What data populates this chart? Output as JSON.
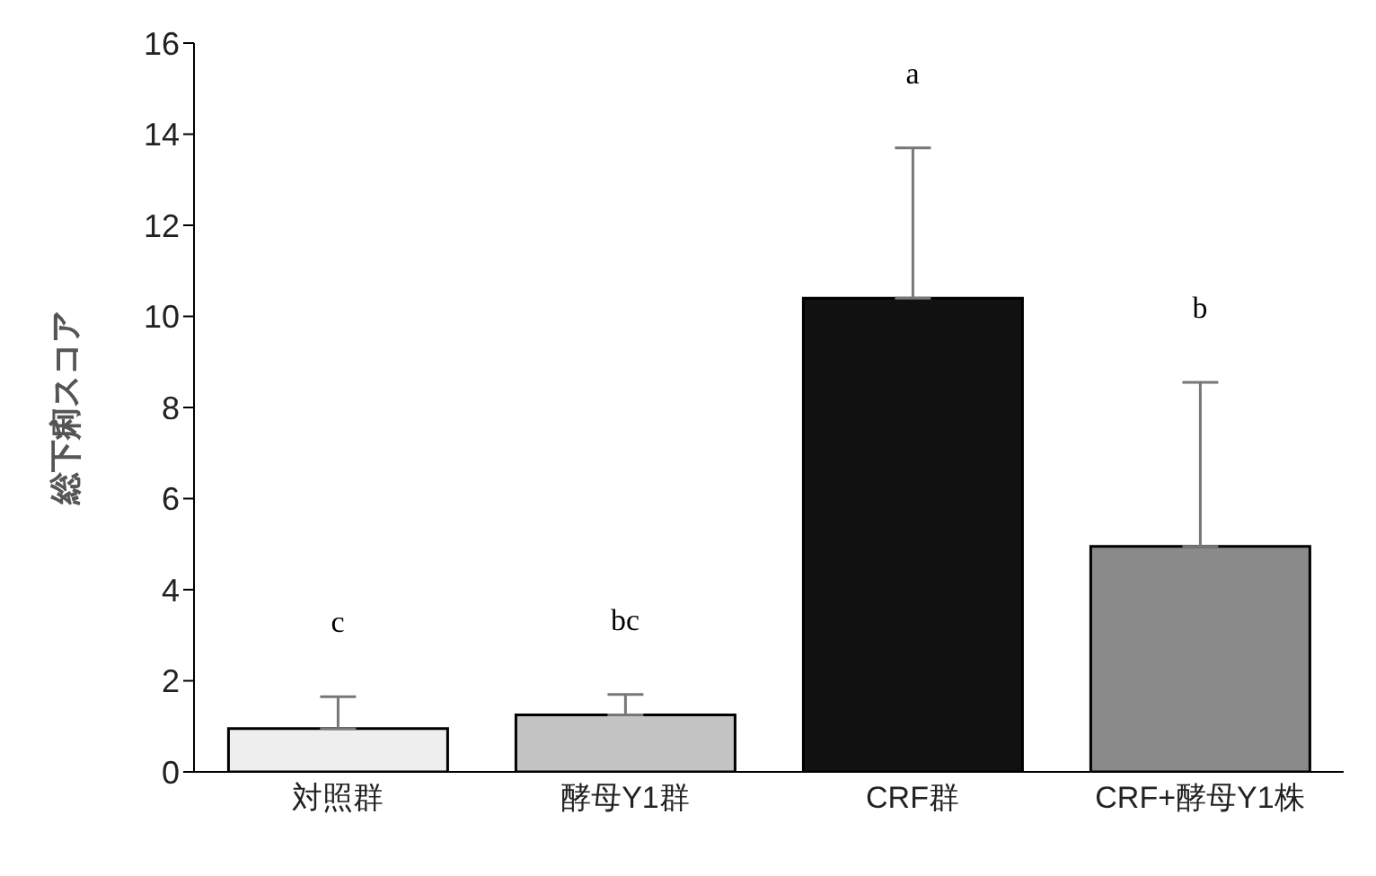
{
  "chart_data": {
    "type": "bar",
    "ylabel": "総下痢スコア",
    "categories": [
      "対照群",
      "酵母Y1群",
      "CRF群",
      "CRF+酵母Y1株"
    ],
    "values": [
      0.95,
      1.25,
      10.4,
      4.95
    ],
    "colors": [
      "#eeeeee",
      "#c4c4c4",
      "#111111",
      "#8a8a8a"
    ],
    "errors": [
      [
        0.95,
        1.65
      ],
      [
        1.25,
        1.7
      ],
      [
        10.4,
        13.7
      ],
      [
        4.95,
        8.55
      ]
    ],
    "ylim": [
      0,
      16
    ],
    "yticks": [
      0,
      2,
      4,
      6,
      8,
      10,
      12,
      14,
      16
    ],
    "grid": false,
    "legend": false,
    "annotations": [
      "c",
      "bc",
      "a",
      "b"
    ]
  }
}
